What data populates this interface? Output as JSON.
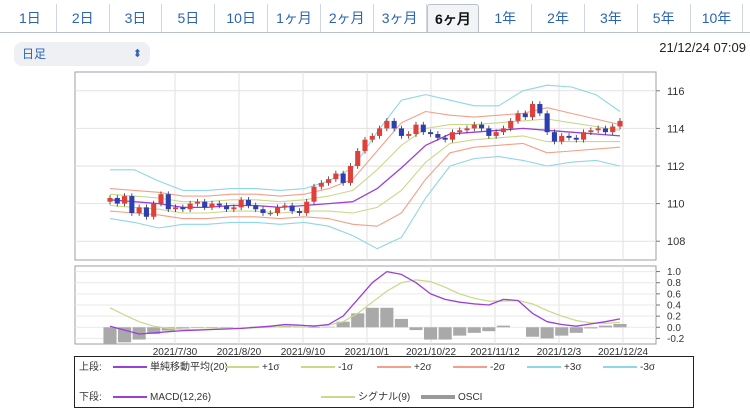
{
  "tabs": [
    "1日",
    "2日",
    "3日",
    "5日",
    "10日",
    "1ヶ月",
    "2ヶ月",
    "3ヶ月",
    "6ヶ月",
    "1年",
    "2年",
    "3年",
    "5年",
    "10年"
  ],
  "active_tab": "6ヶ月",
  "interval_select": "日足",
  "timestamp": "21/12/24 07:09",
  "colors": {
    "up_candle": "#e0403a",
    "down_candle": "#2b3fb0",
    "sma": "#9b3fd6",
    "band1": "#c9d88a",
    "band2": "#f2a08a",
    "band3": "#8fd6e6",
    "macd": "#9b3fd6",
    "signal": "#c9d88a",
    "osci": "#a9a9a9"
  },
  "legend": {
    "upper_label": "上段:",
    "upper_items": [
      {
        "label": "単純移動平均(20)",
        "color": "#9b3fd6"
      },
      {
        "label": "+1σ",
        "color": "#c9d88a"
      },
      {
        "label": "-1σ",
        "color": "#c9d88a"
      },
      {
        "label": "+2σ",
        "color": "#f2a08a"
      },
      {
        "label": "-2σ",
        "color": "#f2a08a"
      },
      {
        "label": "+3σ",
        "color": "#8fd6e6"
      },
      {
        "label": "-3σ",
        "color": "#8fd6e6"
      }
    ],
    "lower_label": "下段:",
    "lower_items": [
      {
        "label": "MACD(12,26)",
        "color": "#9b3fd6"
      },
      {
        "label": "シグナル(9)",
        "color": "#c9d88a"
      },
      {
        "label": "OSCI",
        "color": "#999999"
      }
    ]
  },
  "chart_data": [
    {
      "type": "candlestick",
      "title": "",
      "ylim": [
        107,
        117
      ],
      "y_ticks": [
        108,
        110,
        112,
        114,
        116
      ],
      "x_tick_labels": [
        "2021/7/30",
        "2021/8/20",
        "2021/9/10",
        "2021/10/1",
        "2021/10/22",
        "2021/11/12",
        "2021/12/3",
        "2021/12/24"
      ],
      "grid": true,
      "series": [
        {
          "name": "単純移動平均(20)",
          "values": [
            110.2,
            110.1,
            110.0,
            109.8,
            109.8,
            109.9,
            109.9,
            109.8,
            109.9,
            110.0,
            110.1,
            110.8,
            111.9,
            113.1,
            113.7,
            113.8,
            113.9,
            114.0,
            113.9,
            113.8,
            113.7,
            113.6
          ]
        },
        {
          "name": "+1σ",
          "values": [
            110.5,
            110.4,
            110.3,
            110.1,
            110.1,
            110.2,
            110.2,
            110.1,
            110.2,
            110.4,
            110.7,
            111.8,
            113.1,
            114.0,
            114.2,
            114.2,
            114.3,
            114.4,
            114.5,
            114.3,
            114.1,
            113.9
          ]
        },
        {
          "name": "-1σ",
          "values": [
            109.9,
            109.8,
            109.7,
            109.5,
            109.5,
            109.6,
            109.6,
            109.5,
            109.6,
            109.6,
            109.5,
            109.8,
            110.7,
            112.2,
            113.2,
            113.4,
            113.5,
            113.6,
            113.3,
            113.3,
            113.3,
            113.3
          ]
        },
        {
          "name": "+2σ",
          "values": [
            110.8,
            110.7,
            110.6,
            110.4,
            110.4,
            110.5,
            110.5,
            110.4,
            110.5,
            110.8,
            111.3,
            112.8,
            114.3,
            114.9,
            114.7,
            114.6,
            114.7,
            114.8,
            115.1,
            114.8,
            114.5,
            114.2
          ]
        },
        {
          "name": "-2σ",
          "values": [
            109.6,
            109.5,
            109.4,
            109.2,
            109.2,
            109.3,
            109.3,
            109.2,
            109.3,
            109.2,
            108.9,
            108.8,
            109.5,
            111.3,
            112.7,
            113.0,
            113.1,
            113.2,
            112.7,
            112.8,
            112.9,
            113.0
          ]
        },
        {
          "name": "+3σ",
          "values": [
            111.8,
            111.8,
            111.2,
            110.7,
            110.7,
            110.8,
            110.8,
            110.7,
            110.8,
            111.2,
            111.9,
            113.8,
            115.5,
            115.8,
            115.5,
            115.2,
            115.2,
            116.0,
            116.3,
            116.2,
            115.8,
            114.9
          ]
        },
        {
          "name": "-3σ",
          "values": [
            109.2,
            109.0,
            108.7,
            108.9,
            108.9,
            109.0,
            109.0,
            108.9,
            109.0,
            108.8,
            108.3,
            107.6,
            108.2,
            110.3,
            112.0,
            112.4,
            112.5,
            112.3,
            112.0,
            112.2,
            112.3,
            112.0
          ]
        }
      ],
      "candles": {
        "close": [
          110.3,
          110.0,
          110.4,
          109.5,
          109.8,
          109.3,
          110.0,
          110.5,
          109.7,
          109.8,
          109.7,
          110.0,
          110.1,
          109.8,
          110.0,
          109.9,
          109.7,
          109.8,
          110.2,
          109.9,
          109.7,
          109.5,
          109.5,
          109.8,
          109.9,
          109.6,
          109.5,
          110.1,
          110.9,
          111.1,
          111.3,
          111.6,
          111.1,
          112.0,
          112.8,
          113.4,
          113.6,
          114.0,
          114.4,
          114.0,
          113.6,
          113.7,
          114.2,
          113.8,
          113.7,
          113.5,
          113.4,
          113.8,
          113.9,
          114.0,
          114.2,
          114.0,
          113.6,
          113.8,
          114.0,
          114.4,
          114.8,
          114.6,
          115.3,
          114.8,
          113.8,
          113.3,
          113.6,
          113.5,
          113.4,
          113.8,
          113.9,
          114.0,
          113.8,
          114.1,
          114.4
        ],
        "dir": [
          1,
          -1,
          1,
          -1,
          1,
          -1,
          1,
          1,
          -1,
          1,
          -1,
          1,
          1,
          -1,
          1,
          -1,
          -1,
          1,
          1,
          -1,
          -1,
          -1,
          1,
          1,
          1,
          -1,
          -1,
          1,
          1,
          1,
          1,
          1,
          -1,
          1,
          1,
          1,
          1,
          1,
          1,
          -1,
          -1,
          1,
          1,
          -1,
          -1,
          -1,
          -1,
          1,
          1,
          1,
          1,
          -1,
          -1,
          1,
          1,
          1,
          1,
          -1,
          1,
          -1,
          -1,
          -1,
          1,
          -1,
          -1,
          1,
          1,
          1,
          -1,
          1,
          1
        ]
      }
    },
    {
      "type": "macd",
      "title": "",
      "ylim": [
        -0.3,
        1.1
      ],
      "y_ticks": [
        -0.2,
        0.0,
        0.2,
        0.4,
        0.6,
        0.8,
        1.0
      ],
      "series": [
        {
          "name": "MACD(12,26)",
          "values": [
            0.02,
            -0.05,
            -0.12,
            -0.1,
            -0.08,
            -0.06,
            -0.05,
            -0.04,
            -0.03,
            -0.02,
            0.0,
            0.02,
            0.05,
            0.04,
            0.02,
            0.05,
            0.2,
            0.5,
            0.8,
            1.0,
            0.95,
            0.8,
            0.6,
            0.5,
            0.45,
            0.42,
            0.4,
            0.5,
            0.48,
            0.25,
            0.1,
            0.05,
            0.02,
            0.06,
            0.1,
            0.15
          ]
        },
        {
          "name": "シグナル(9)",
          "values": [
            0.35,
            0.22,
            0.1,
            0.02,
            -0.02,
            -0.04,
            -0.04,
            -0.03,
            -0.02,
            -0.02,
            -0.01,
            0.0,
            0.02,
            0.03,
            0.03,
            0.04,
            0.1,
            0.25,
            0.45,
            0.65,
            0.8,
            0.85,
            0.82,
            0.72,
            0.6,
            0.52,
            0.47,
            0.47,
            0.48,
            0.42,
            0.3,
            0.2,
            0.12,
            0.08,
            0.07,
            0.09
          ]
        },
        {
          "name": "OSCI",
          "values": [
            -0.3,
            -0.27,
            -0.22,
            -0.12,
            -0.06,
            -0.02,
            -0.01,
            -0.01,
            -0.01,
            0.0,
            0.01,
            0.02,
            0.03,
            0.01,
            -0.01,
            0.01,
            0.1,
            0.25,
            0.35,
            0.35,
            0.15,
            -0.05,
            -0.22,
            -0.22,
            -0.15,
            -0.1,
            -0.07,
            0.03,
            0.0,
            -0.17,
            -0.2,
            -0.15,
            -0.1,
            -0.02,
            0.03,
            0.06
          ]
        }
      ]
    }
  ]
}
